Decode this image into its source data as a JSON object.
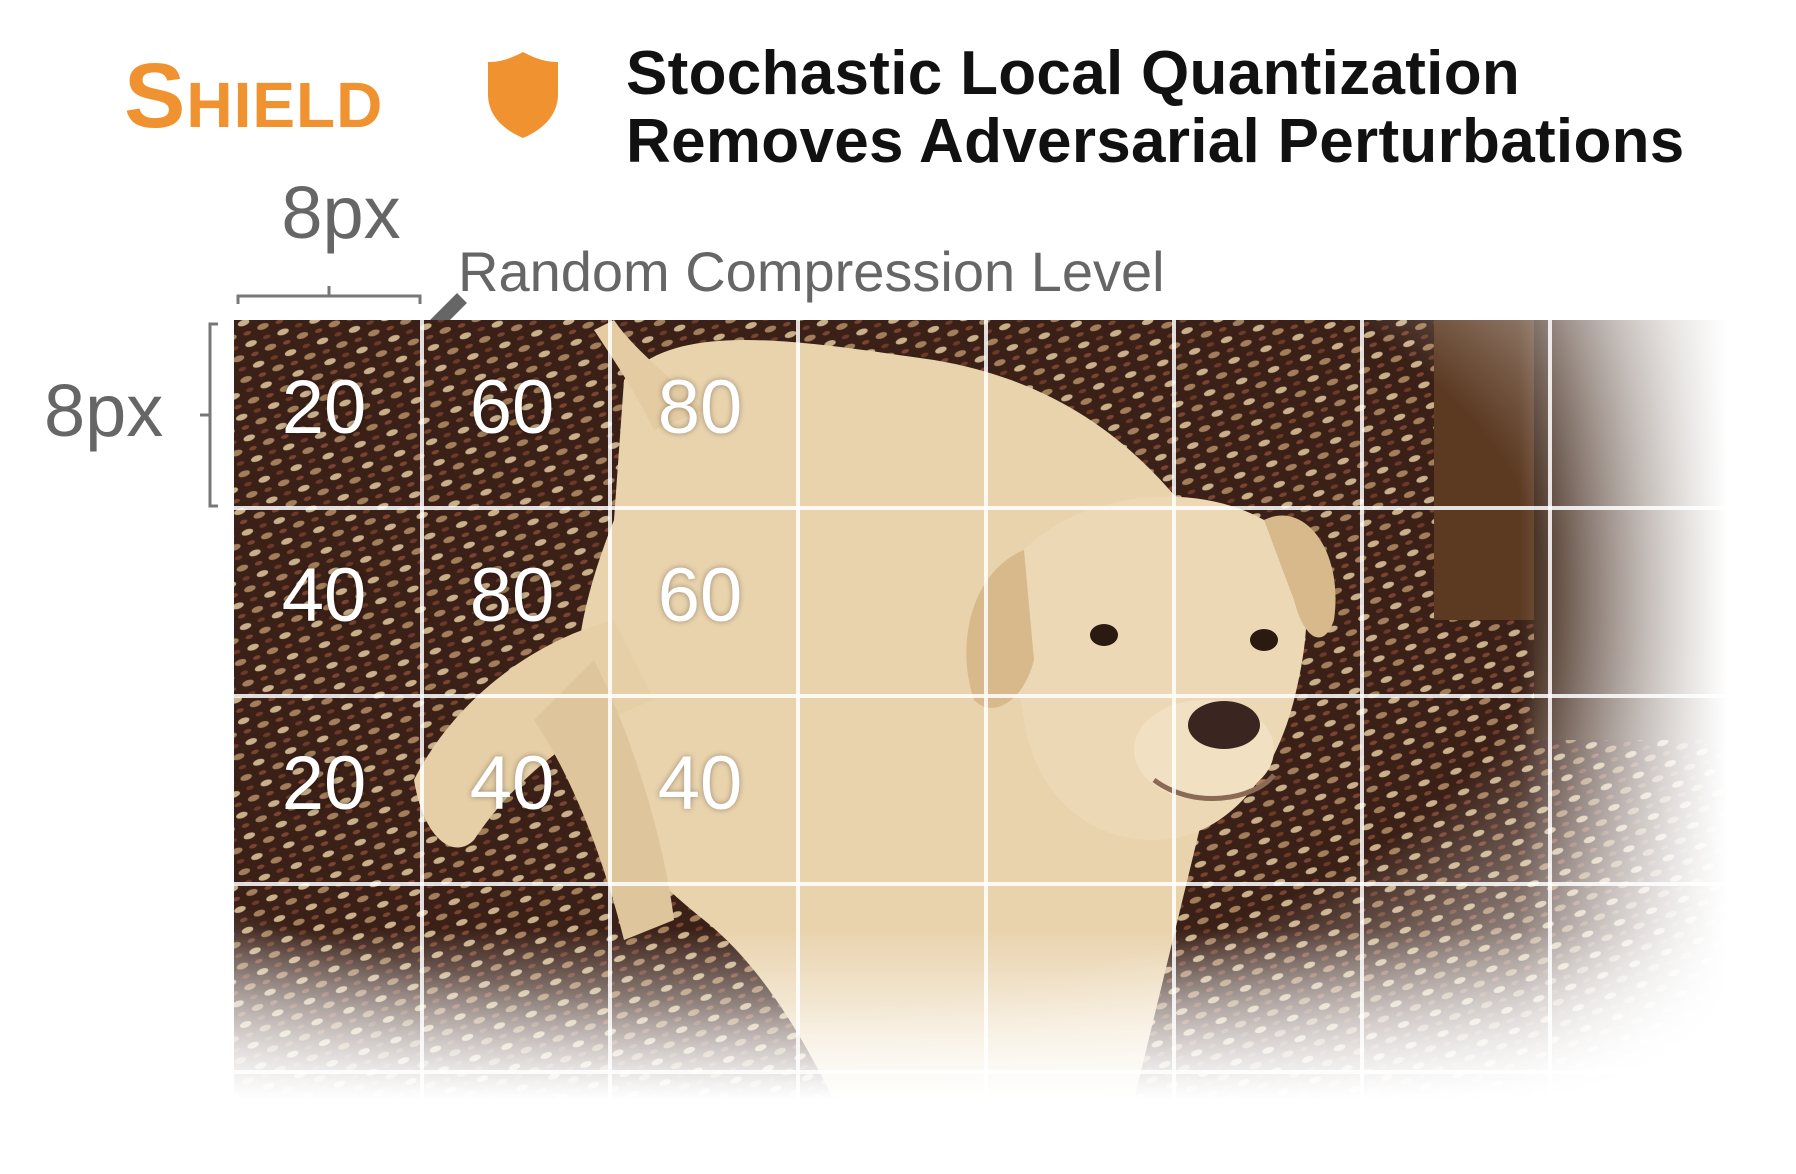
{
  "logo": {
    "text": "Shield",
    "accent_color": "#f0922f",
    "icon": "shield-icon"
  },
  "headline": {
    "line1": "Stochastic Local Quantization",
    "line2": "Removes Adversarial Perturbations"
  },
  "diagram": {
    "block_width_label": "8px",
    "block_height_label": "8px",
    "arrow_label": "Random Compression Level",
    "grid_rows": 4,
    "grid_cols": 8,
    "compression_levels": [
      [
        "20",
        "60",
        "80"
      ],
      [
        "40",
        "80",
        "60"
      ],
      [
        "20",
        "40",
        "40"
      ]
    ],
    "image_subject": "dog-photo"
  }
}
